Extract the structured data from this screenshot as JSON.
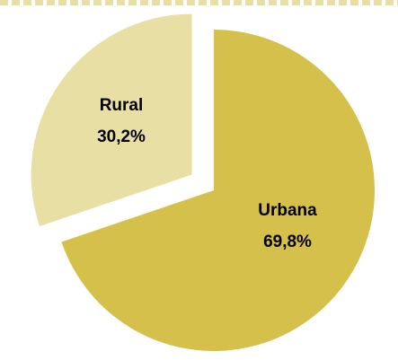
{
  "chart_data": {
    "type": "pie",
    "slices": [
      {
        "name": "Urbana",
        "value": 69.8,
        "label": "69,8%",
        "color": "#d4c04a"
      },
      {
        "name": "Rural",
        "value": 30.2,
        "label": "30,2%",
        "color": "#e8dfa4"
      }
    ],
    "exploded": "Rural",
    "legend": "none"
  },
  "colors": {
    "background": "#ffffff",
    "top_border": "#e8dfa4"
  }
}
